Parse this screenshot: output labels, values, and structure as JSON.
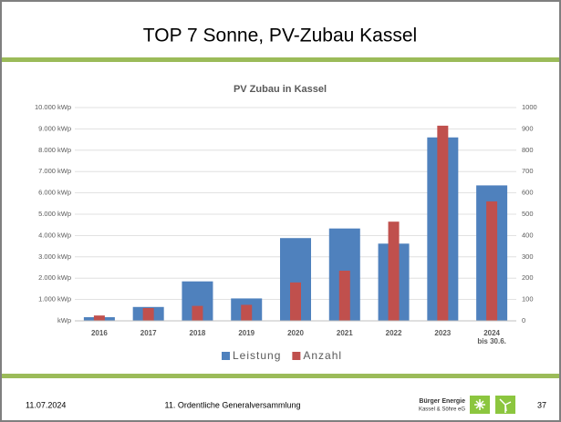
{
  "slide": {
    "title": "TOP 7 Sonne, PV-Zubau Kassel",
    "date": "11.07.2024",
    "event": "11. Ordentliche Generalversammlung",
    "logo_line1": "Bürger Energie",
    "logo_line2": "Kassel & Söhre eG",
    "page": "37"
  },
  "chart_data": {
    "type": "bar",
    "title": "PV Zubau in Kassel",
    "categories": [
      "2016",
      "2017",
      "2018",
      "2019",
      "2020",
      "2021",
      "2022",
      "2023",
      "2024\nbis 30.6."
    ],
    "series": [
      {
        "name": "Leistung",
        "color": "#4f81bd",
        "values": [
          170,
          650,
          1850,
          1050,
          3880,
          4330,
          3620,
          8600,
          6350
        ]
      },
      {
        "name": "Anzahl",
        "color": "#c0504d",
        "axis": "y2",
        "values": [
          25,
          60,
          70,
          75,
          180,
          235,
          465,
          915,
          560
        ]
      }
    ],
    "ylim": [
      0,
      10000
    ],
    "yticks": [
      {
        "value": 0,
        "label": "kWp"
      },
      {
        "value": 1000,
        "label": "1.000 kWp"
      },
      {
        "value": 2000,
        "label": "2.000 kWp"
      },
      {
        "value": 3000,
        "label": "3.000 kWp"
      },
      {
        "value": 4000,
        "label": "4.000 kWp"
      },
      {
        "value": 5000,
        "label": "5.000 kWp"
      },
      {
        "value": 6000,
        "label": "6.000 kWp"
      },
      {
        "value": 7000,
        "label": "7.000 kWp"
      },
      {
        "value": 8000,
        "label": "8.000 kWp"
      },
      {
        "value": 9000,
        "label": "9.000 kWp"
      },
      {
        "value": 10000,
        "label": "10.000 kWp"
      }
    ],
    "y2lim": [
      0,
      1000
    ],
    "y2ticks": [
      0,
      100,
      200,
      300,
      400,
      500,
      600,
      700,
      800,
      900,
      1000
    ],
    "grid": true,
    "legend": "bottom"
  }
}
